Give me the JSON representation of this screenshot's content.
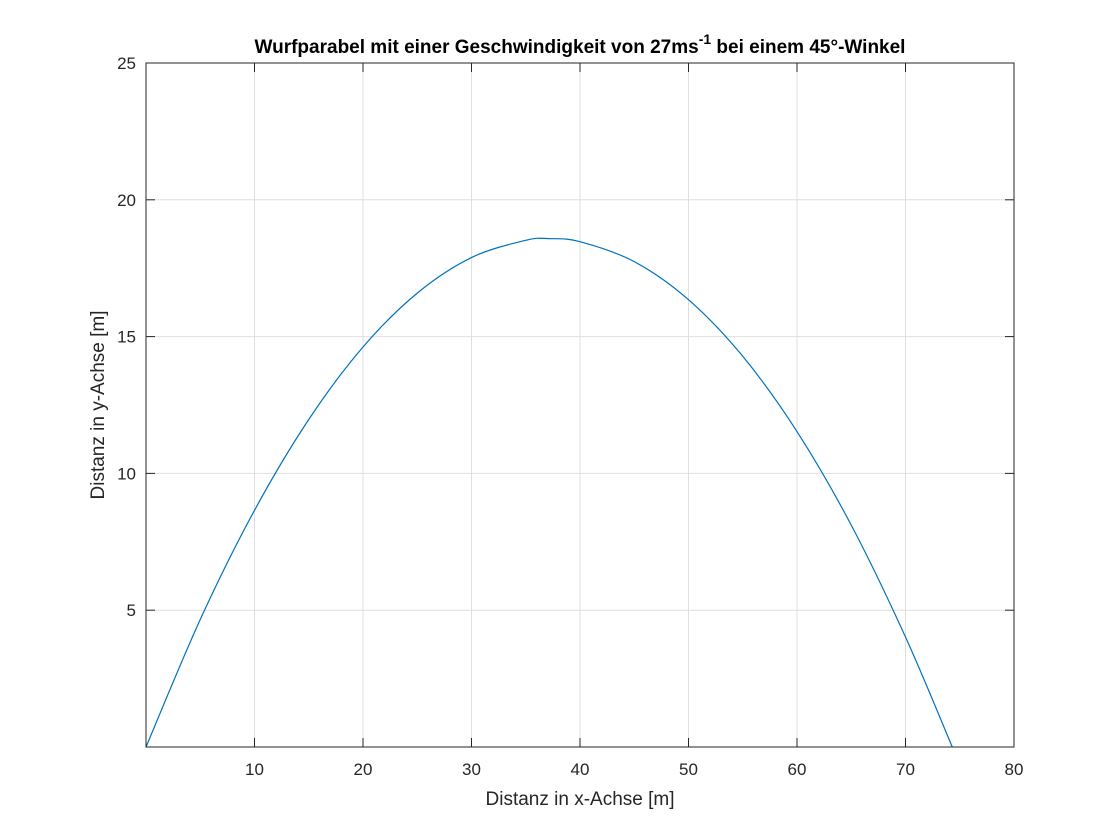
{
  "chart_data": {
    "type": "line",
    "title_main": "Wurfparabel mit einer Geschwindigkeit von 27ms",
    "title_superscript": "-1",
    "title_tail": " bei einem 45°-Winkel",
    "xlabel": "Distanz in x-Achse [m]",
    "ylabel": "Distanz in y-Achse [m]",
    "xlim": [
      0,
      80
    ],
    "ylim": [
      0,
      25
    ],
    "xticks": [
      10,
      20,
      30,
      40,
      50,
      60,
      70,
      80
    ],
    "yticks": [
      5,
      10,
      15,
      20,
      25
    ],
    "grid": true,
    "series": [
      {
        "color": "#0072bd",
        "x": [
          0,
          5,
          10,
          15,
          20,
          25,
          30,
          35,
          37.16,
          40,
          45,
          50,
          55,
          60,
          65,
          70,
          74.31
        ],
        "y": [
          0,
          4.66,
          8.65,
          11.97,
          14.62,
          16.59,
          17.89,
          18.52,
          18.58,
          18.47,
          17.74,
          16.35,
          14.28,
          11.53,
          8.11,
          4.02,
          0
        ]
      }
    ]
  }
}
